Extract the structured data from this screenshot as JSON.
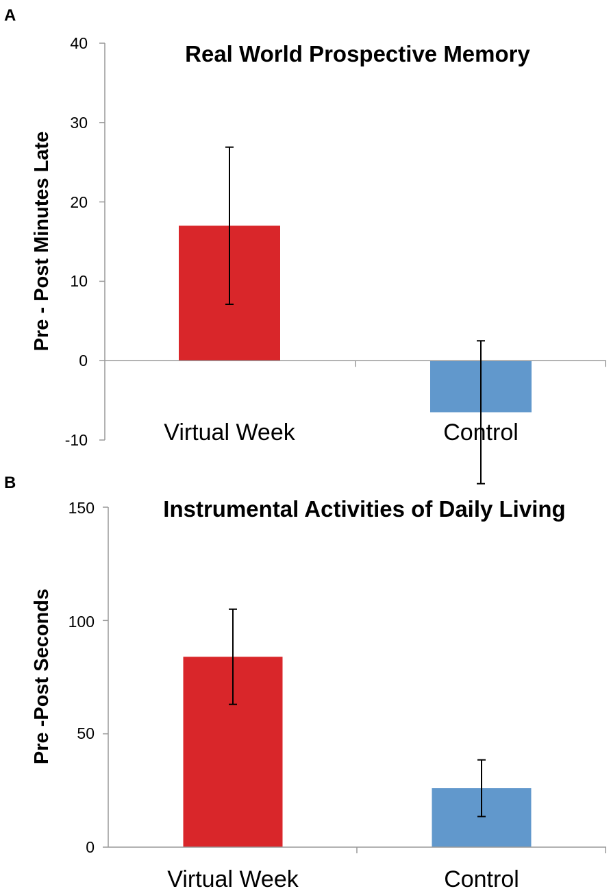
{
  "chart_data": [
    {
      "panel": "A",
      "type": "bar",
      "title": "Real World Prospective Memory",
      "xlabel": "",
      "ylabel": "Pre - Post Minutes Late",
      "ylim": [
        -10,
        40
      ],
      "yticks": [
        "40",
        "30",
        "20",
        "10",
        "0",
        "-10"
      ],
      "ytick_values": [
        40,
        30,
        20,
        10,
        0,
        -10
      ],
      "categories": [
        "Virtual Week",
        "Control"
      ],
      "values": [
        17,
        -6.5
      ],
      "errors": [
        9.9,
        9
      ],
      "colors": [
        "#d9262a",
        "#6198cc"
      ],
      "grid": false,
      "legend": "none"
    },
    {
      "panel": "B",
      "type": "bar",
      "title": "Instrumental Activities of Daily Living",
      "xlabel": "",
      "ylabel": "Pre -Post Seconds",
      "ylim": [
        0,
        150
      ],
      "yticks": [
        "150",
        "100",
        "50",
        "0"
      ],
      "ytick_values": [
        150,
        100,
        50,
        0
      ],
      "categories": [
        "Virtual Week",
        "Control"
      ],
      "values": [
        84,
        26
      ],
      "errors": [
        21,
        12.5
      ],
      "colors": [
        "#d9262a",
        "#6198cc"
      ],
      "grid": false,
      "legend": "none"
    }
  ]
}
